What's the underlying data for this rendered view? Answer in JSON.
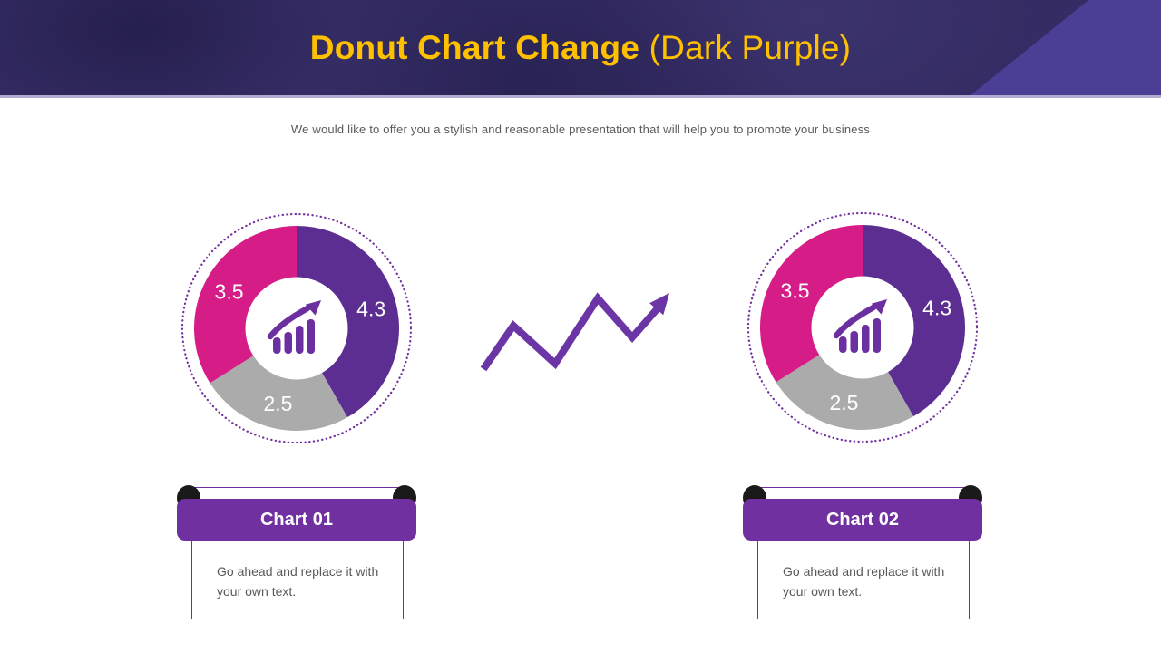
{
  "header": {
    "title_bold": "Donut Chart Change",
    "title_light": "(Dark Purple)",
    "subtitle": "We would like to offer you a stylish and reasonable presentation that will help you to promote your business"
  },
  "colors": {
    "header_background": "#342C63",
    "header_corner": "#4B3E95",
    "header_divider": "#B2AAD1",
    "title": "#FFC000",
    "ribbon": "#7030A0",
    "ribbon_curl": "#1A1A1A",
    "box_border": "#7030A0",
    "body_text": "#595959",
    "arrow": "#6B35A6"
  },
  "divider": {
    "icon": "zigzag-trend-arrow-icon"
  },
  "chart_data": [
    {
      "type": "donut",
      "title": "Chart 01",
      "note": "Go ahead and replace it with your own text.",
      "start_angle_deg": 0,
      "direction": "clockwise",
      "ring_color": "#7030A0",
      "center_icon": "trend-up-bar-chart-icon",
      "center_icon_color": "#6B2FA0",
      "segments": [
        {
          "label": "4.3",
          "value": 4.3,
          "color": "#5C2E91"
        },
        {
          "label": "2.5",
          "value": 2.5,
          "color": "#ABABAB"
        },
        {
          "label": "3.5",
          "value": 3.5,
          "color": "#D61C87"
        }
      ]
    },
    {
      "type": "donut",
      "title": "Chart 02",
      "note": "Go ahead and replace it with your own text.",
      "start_angle_deg": 0,
      "direction": "clockwise",
      "ring_color": "#7030A0",
      "center_icon": "trend-up-bar-chart-icon",
      "center_icon_color": "#6B2FA0",
      "segments": [
        {
          "label": "4.3",
          "value": 4.3,
          "color": "#5C2E91"
        },
        {
          "label": "2.5",
          "value": 2.5,
          "color": "#ABABAB"
        },
        {
          "label": "3.5",
          "value": 3.5,
          "color": "#D61C87"
        }
      ]
    }
  ]
}
